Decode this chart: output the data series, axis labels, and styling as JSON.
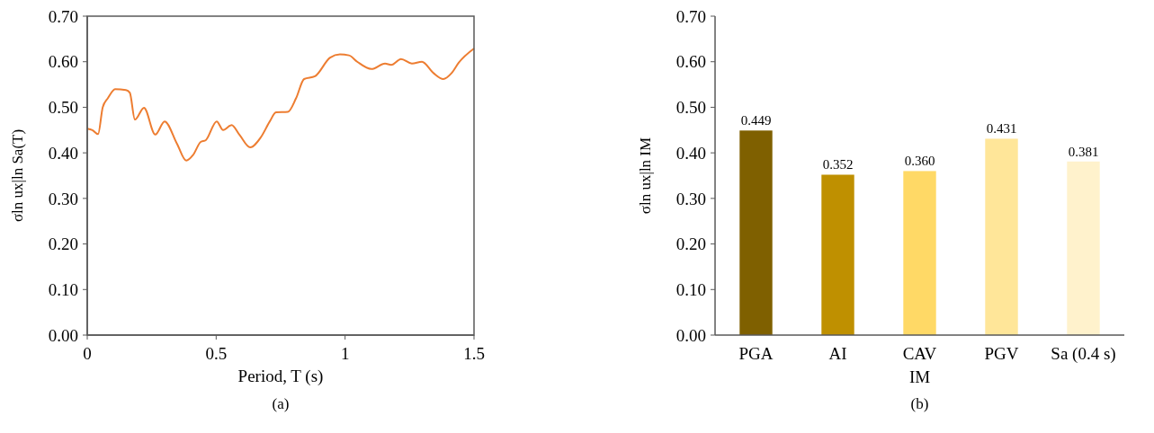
{
  "chart_data": [
    {
      "type": "line",
      "xlabel": "Period, T (s)",
      "ylabel": "σln ux|ln Sa(T)",
      "annotations": [
        "(a)"
      ],
      "xlim": [
        0,
        1.5
      ],
      "xticks": [
        0,
        0.5,
        1,
        1.5
      ],
      "ylim": [
        0,
        0.7
      ],
      "yticks": [
        {
          "value": 0,
          "label": "0.00"
        },
        {
          "value": 0.1,
          "label": "0.10"
        },
        {
          "value": 0.2,
          "label": "0.20"
        },
        {
          "value": 0.3,
          "label": "0.30"
        },
        {
          "value": 0.4,
          "label": "0.40"
        },
        {
          "value": 0.5,
          "label": "0.50"
        },
        {
          "value": 0.6,
          "label": "0.60"
        },
        {
          "value": 0.7,
          "label": "0.70"
        }
      ],
      "grid": false,
      "series": [
        {
          "color": "#ed7d31",
          "x": [
            0,
            0.02,
            0.042,
            0.06,
            0.08,
            0.108,
            0.15,
            0.165,
            0.185,
            0.22,
            0.264,
            0.3,
            0.348,
            0.384,
            0.41,
            0.44,
            0.46,
            0.502,
            0.527,
            0.56,
            0.59,
            0.632,
            0.673,
            0.708,
            0.732,
            0.778,
            0.81,
            0.841,
            0.883,
            0.942,
            0.98,
            1.015,
            1.047,
            1.102,
            1.155,
            1.179,
            1.217,
            1.259,
            1.298,
            1.343,
            1.381,
            1.413,
            1.441,
            1.5
          ],
          "values": [
            0.453,
            0.45,
            0.441,
            0.5,
            0.52,
            0.54,
            0.538,
            0.532,
            0.473,
            0.499,
            0.44,
            0.469,
            0.42,
            0.383,
            0.395,
            0.424,
            0.428,
            0.469,
            0.45,
            0.461,
            0.44,
            0.412,
            0.434,
            0.469,
            0.489,
            0.49,
            0.52,
            0.562,
            0.568,
            0.609,
            0.616,
            0.614,
            0.6,
            0.584,
            0.596,
            0.593,
            0.606,
            0.596,
            0.6,
            0.575,
            0.562,
            0.575,
            0.598,
            0.629
          ]
        }
      ]
    },
    {
      "type": "bar",
      "xlabel": "IM",
      "ylabel": "σln ux|ln IM",
      "annotations": [
        "(b)"
      ],
      "categories": [
        "PGA",
        "AI",
        "CAV",
        "PGV",
        "Sa (0.4 s)"
      ],
      "values": [
        0.449,
        0.352,
        0.36,
        0.431,
        0.381
      ],
      "colors": [
        "#7f6000",
        "#bf9000",
        "#ffd966",
        "#ffe699",
        "#fff2cc"
      ],
      "value_labels": [
        "0.449",
        "0.352",
        "0.360",
        "0.431",
        "0.381"
      ],
      "ylim": [
        0,
        0.7
      ],
      "yticks": [
        {
          "value": 0,
          "label": "0.00"
        },
        {
          "value": 0.1,
          "label": "0.10"
        },
        {
          "value": 0.2,
          "label": "0.20"
        },
        {
          "value": 0.3,
          "label": "0.30"
        },
        {
          "value": 0.4,
          "label": "0.40"
        },
        {
          "value": 0.5,
          "label": "0.50"
        },
        {
          "value": 0.6,
          "label": "0.60"
        },
        {
          "value": 0.7,
          "label": "0.70"
        }
      ],
      "grid": false
    }
  ]
}
